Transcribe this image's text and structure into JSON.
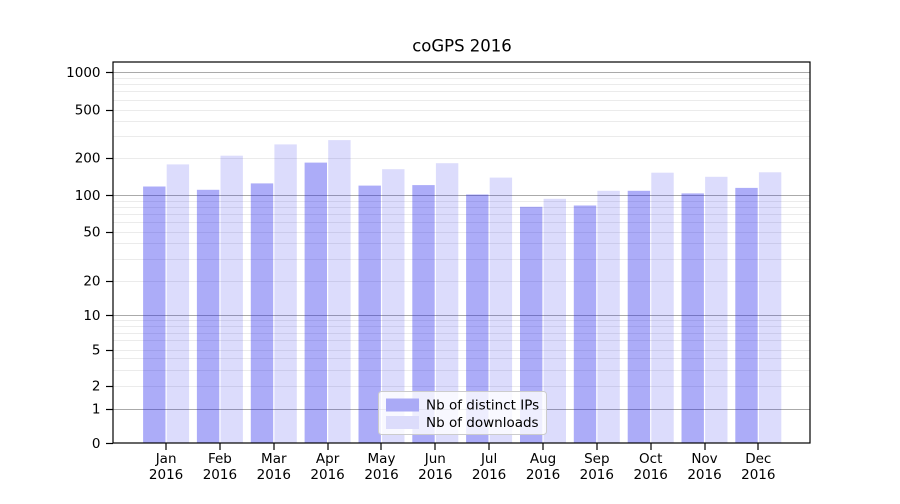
{
  "chart_data": {
    "type": "bar",
    "title": "coGPS 2016",
    "categories": [
      "Jan",
      "Feb",
      "Mar",
      "Apr",
      "May",
      "Jun",
      "Jul",
      "Aug",
      "Sep",
      "Oct",
      "Nov",
      "Dec"
    ],
    "category_year_label": "2016",
    "series": [
      {
        "name": "Nb of distinct IPs",
        "color": "#aaaaf6",
        "fill": "rgba(30,30,235,0.37)",
        "values": [
          117,
          110,
          124,
          182,
          119,
          120,
          101,
          80,
          82,
          108,
          103,
          114
        ]
      },
      {
        "name": "Nb of downloads",
        "color": "#dcdcfb",
        "fill": "rgba(30,30,235,0.155)",
        "values": [
          176,
          207,
          257,
          279,
          161,
          180,
          138,
          93,
          108,
          151,
          140,
          152
        ]
      }
    ],
    "xlabel": "",
    "ylabel": "",
    "yticks": [
      0,
      1,
      2,
      5,
      10,
      20,
      50,
      100,
      200,
      500,
      1000
    ],
    "yscale": "log (symlog-style, 0 shown at baseline)",
    "ylim": [
      0,
      1200
    ],
    "grid": true,
    "legend_position": "lower center"
  },
  "colors": {
    "background": "#ffffff",
    "axis": "#000000",
    "major_grid": "#aaaaaa",
    "minor_grid": "#ebebeb",
    "legend_border": "#cccccc",
    "legend_background": "rgba(255,255,255,0.8)"
  }
}
